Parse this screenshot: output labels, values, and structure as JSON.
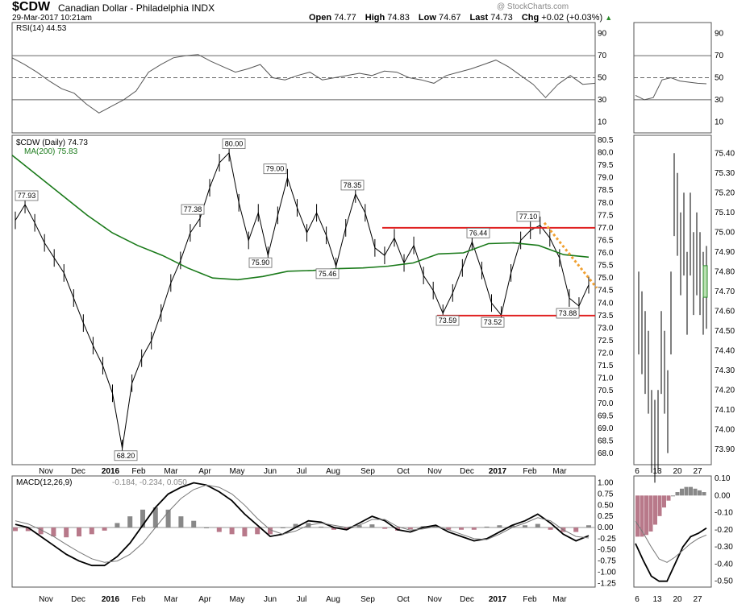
{
  "header": {
    "symbol": "$CDW",
    "description": "Canadian Dollar - Philadelphia INDX",
    "datetime": "29-Mar-2017 10:21am",
    "watermark": "@ StockCharts.com",
    "open_label": "Open",
    "open": "74.77",
    "high_label": "High",
    "high": "74.83",
    "low_label": "Low",
    "low": "74.67",
    "last_label": "Last",
    "last": "74.73",
    "chg_label": "Chg",
    "chg": "+0.02 (+0.03%)",
    "chg_arrow": "▲"
  },
  "rsi_panel": {
    "legend": "RSI(14) 44.53",
    "ticks": [
      "90",
      "70",
      "50",
      "30",
      "10"
    ]
  },
  "price_panel": {
    "legend_symbol": "$CDW (Daily) 74.73",
    "legend_ma": "MA(200) 75.83",
    "ma_color": "#1a7a1a",
    "ticks": [
      "80.5",
      "80.0",
      "79.5",
      "79.0",
      "78.5",
      "78.0",
      "77.5",
      "77.0",
      "76.5",
      "76.0",
      "75.5",
      "75.0",
      "74.5",
      "74.0",
      "73.5",
      "73.0",
      "72.5",
      "72.0",
      "71.5",
      "71.0",
      "70.5",
      "70.0",
      "69.5",
      "69.0",
      "68.5",
      "68.0"
    ],
    "annotations": [
      "77.93",
      "77.38",
      "80.00",
      "79.00",
      "75.90",
      "75.46",
      "78.35",
      "76.44",
      "77.10",
      "73.59",
      "73.52",
      "73.88",
      "68.20"
    ],
    "colors": {
      "support_resistance": "#e02020",
      "trend": "#f0a030"
    }
  },
  "macd_panel": {
    "legend": "MACD(12,26,9)",
    "legend_values": "-0.184, -0.234, 0.050",
    "ticks": [
      "1.00",
      "0.75",
      "0.50",
      "0.25",
      "0.00",
      "-0.25",
      "-0.50",
      "-0.75",
      "-1.00",
      "-1.25"
    ]
  },
  "x_axis": {
    "labels": [
      "Nov",
      "Dec",
      "2016",
      "Feb",
      "Mar",
      "Apr",
      "May",
      "Jun",
      "Jul",
      "Aug",
      "Sep",
      "Oct",
      "Nov",
      "Dec",
      "2017",
      "Feb",
      "Mar"
    ]
  },
  "side_chart": {
    "price_ticks": [
      "75.40",
      "75.30",
      "75.20",
      "75.10",
      "75.00",
      "74.90",
      "74.80",
      "74.70",
      "74.60",
      "74.50",
      "74.40",
      "74.30",
      "74.20",
      "74.10",
      "74.00",
      "73.90"
    ],
    "rsi_ticks": [
      "90",
      "70",
      "50",
      "30",
      "10"
    ],
    "macd_ticks": [
      "0.10",
      "0.00",
      "-0.10",
      "-0.20",
      "-0.30",
      "-0.40",
      "-0.50"
    ],
    "x_labels": [
      "6",
      "13",
      "20",
      "27"
    ]
  },
  "chart_data": [
    {
      "type": "line",
      "title": "RSI(14)",
      "ylim": [
        0,
        100
      ],
      "last_value": 44.53,
      "series": [
        {
          "name": "RSI(14)",
          "values": [
            68,
            62,
            55,
            47,
            40,
            36,
            26,
            18,
            24,
            30,
            38,
            55,
            62,
            68,
            70,
            71,
            65,
            60,
            55,
            58,
            62,
            50,
            48,
            52,
            55,
            48,
            50,
            52,
            54,
            52,
            56,
            55,
            50,
            48,
            45,
            52,
            55,
            58,
            62,
            66,
            60,
            52,
            44,
            32,
            44,
            52,
            44,
            45
          ]
        }
      ]
    },
    {
      "type": "line",
      "title": "$CDW (Daily)",
      "x_labels": [
        "Nov",
        "Dec",
        "2016",
        "Feb",
        "Mar",
        "Apr",
        "May",
        "Jun",
        "Jul",
        "Aug",
        "Sep",
        "Oct",
        "Nov",
        "Dec",
        "2017",
        "Feb",
        "Mar"
      ],
      "ylim": [
        68.0,
        80.5
      ],
      "series": [
        {
          "name": "$CDW (Daily)",
          "values": [
            77.3,
            77.93,
            77.2,
            76.4,
            75.8,
            75.2,
            74.2,
            73.2,
            72.3,
            71.5,
            70.4,
            68.2,
            70.8,
            71.8,
            72.5,
            73.6,
            74.8,
            75.7,
            76.8,
            77.38,
            78.6,
            79.6,
            80.0,
            78.0,
            76.5,
            77.6,
            75.9,
            77.5,
            79.0,
            77.8,
            76.8,
            77.6,
            76.7,
            75.46,
            77.0,
            78.35,
            77.6,
            76.2,
            75.9,
            76.6,
            75.6,
            76.3,
            75.1,
            74.5,
            73.59,
            74.4,
            75.4,
            76.44,
            75.3,
            74.0,
            73.52,
            75.2,
            76.5,
            76.9,
            77.1,
            76.6,
            75.8,
            74.2,
            73.88,
            74.73
          ]
        },
        {
          "name": "MA(200)",
          "values": [
            79.9,
            79.1,
            78.3,
            77.5,
            76.8,
            76.3,
            75.9,
            75.4,
            75.0,
            74.93,
            75.06,
            75.27,
            75.3,
            75.37,
            75.4,
            75.47,
            75.6,
            75.96,
            76.0,
            76.37,
            76.4,
            76.3,
            75.93,
            75.83
          ]
        }
      ],
      "annotations": [
        77.93,
        77.38,
        80.0,
        79.0,
        75.9,
        75.46,
        78.35,
        76.44,
        77.1,
        73.59,
        73.52,
        73.88,
        68.2
      ],
      "lines": {
        "resistance": 77.0,
        "support": 73.5
      }
    },
    {
      "type": "line",
      "title": "MACD(12,26,9)",
      "ylim": [
        -1.25,
        1.0
      ],
      "series": [
        {
          "name": "MACD",
          "values": [
            0.07,
            0.0,
            -0.2,
            -0.4,
            -0.6,
            -0.75,
            -0.85,
            -0.85,
            -0.65,
            -0.35,
            0.05,
            0.45,
            0.75,
            0.9,
            1.0,
            0.95,
            0.8,
            0.6,
            0.3,
            0.05,
            -0.2,
            -0.15,
            0.0,
            0.15,
            0.12,
            0.0,
            -0.05,
            0.1,
            0.25,
            0.15,
            -0.05,
            -0.1,
            0.0,
            0.05,
            -0.1,
            -0.2,
            -0.3,
            -0.25,
            -0.1,
            0.05,
            0.15,
            0.3,
            0.1,
            -0.15,
            -0.3,
            -0.184
          ]
        },
        {
          "name": "Signal",
          "values": [
            0.15,
            0.08,
            -0.05,
            -0.2,
            -0.38,
            -0.55,
            -0.7,
            -0.78,
            -0.75,
            -0.6,
            -0.35,
            0.0,
            0.35,
            0.65,
            0.85,
            0.95,
            0.9,
            0.75,
            0.5,
            0.2,
            -0.05,
            -0.15,
            -0.08,
            0.05,
            0.1,
            0.05,
            0.0,
            0.05,
            0.18,
            0.18,
            0.02,
            -0.06,
            -0.03,
            0.02,
            -0.05,
            -0.15,
            -0.25,
            -0.27,
            -0.15,
            0.0,
            0.1,
            0.22,
            0.15,
            -0.05,
            -0.2,
            -0.234
          ]
        },
        {
          "name": "Histogram",
          "values": [
            -0.08,
            -0.08,
            -0.15,
            -0.2,
            -0.22,
            -0.2,
            -0.15,
            -0.07,
            0.1,
            0.25,
            0.4,
            0.45,
            0.4,
            0.25,
            0.15,
            0.0,
            -0.1,
            -0.15,
            -0.2,
            -0.15,
            -0.15,
            0.0,
            0.08,
            0.1,
            0.02,
            -0.05,
            -0.05,
            0.05,
            0.07,
            -0.03,
            -0.07,
            -0.04,
            0.03,
            0.03,
            -0.05,
            -0.05,
            -0.05,
            0.02,
            0.05,
            0.05,
            0.05,
            0.08,
            -0.05,
            -0.1,
            -0.1,
            0.05
          ]
        }
      ]
    },
    {
      "type": "line",
      "title": "",
      "x_labels": [
        "6",
        "13",
        "20",
        "27"
      ],
      "ylim": [
        73.85,
        75.45
      ],
      "series": [
        {
          "name": "",
          "values": [
            74.6,
            74.5,
            74.4,
            74.3,
            74.0,
            73.95,
            74.0,
            74.4,
            74.3,
            74.1,
            74.6,
            75.2,
            75.1,
            74.9,
            75.0,
            74.7,
            75.0,
            74.8,
            74.9,
            74.8,
            74.7,
            74.73
          ]
        }
      ]
    }
  ]
}
